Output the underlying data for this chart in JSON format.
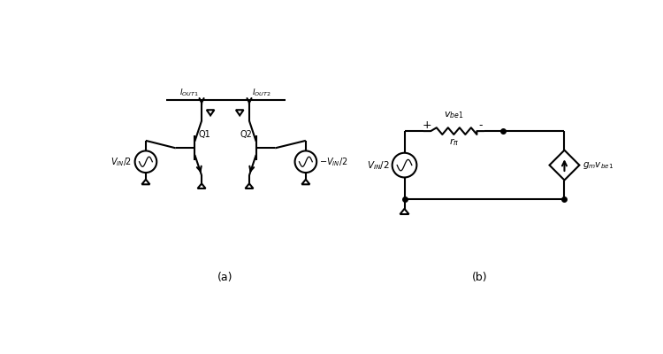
{
  "bg_color": "#ffffff",
  "line_color": "#000000",
  "line_width": 1.5,
  "label_a": "(a)",
  "label_b": "(b)",
  "fig_width": 7.5,
  "fig_height": 4.0
}
